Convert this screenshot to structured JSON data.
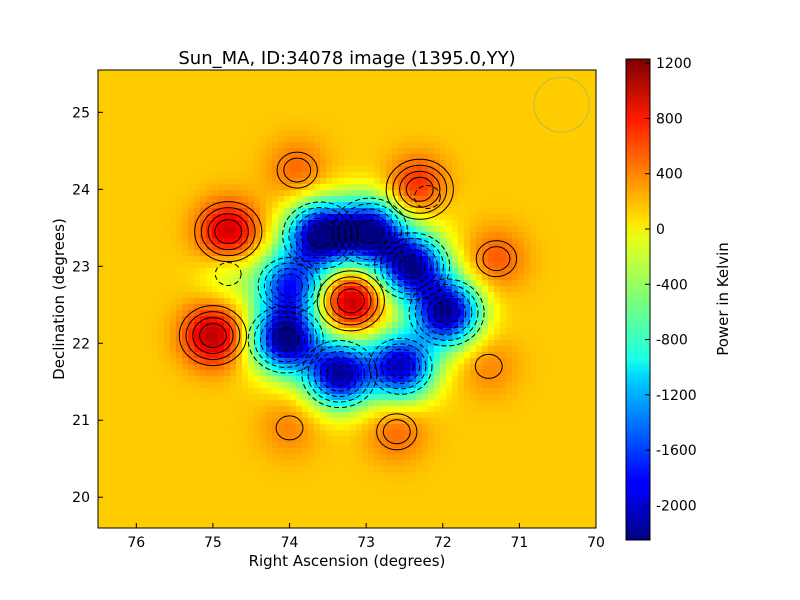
{
  "chart_data": {
    "type": "heatmap",
    "title": "Sun_MA, ID:34078 image (1395.0,YY)",
    "xlabel": "Right Ascension (degrees)",
    "ylabel": "Declination (degrees)",
    "colorbar_label": "Power in Kelvin",
    "xlim": [
      76.5,
      70.0
    ],
    "ylim": [
      19.6,
      25.55
    ],
    "x_ticks": [
      76,
      75,
      74,
      73,
      72,
      71,
      70
    ],
    "y_ticks": [
      20,
      21,
      22,
      23,
      24,
      25
    ],
    "colorbar_range": [
      -2250,
      1230
    ],
    "colorbar_ticks": [
      1200,
      800,
      400,
      0,
      -400,
      -800,
      -1200,
      -1600,
      -2000
    ],
    "colormap": "jet",
    "background_level": 100,
    "contours": "solid lines for positive levels, dashed lines for negative levels",
    "image_center": {
      "ra": 73.2,
      "dec": 22.55
    },
    "features": [
      {
        "label": "central peak",
        "ra": 73.2,
        "dec": 22.55,
        "value": 1100
      },
      {
        "label": "lobe",
        "ra": 72.3,
        "dec": 24.0,
        "value": 1000
      },
      {
        "label": "lobe",
        "ra": 74.8,
        "dec": 23.45,
        "value": 1000
      },
      {
        "label": "lobe",
        "ra": 75.0,
        "dec": 22.1,
        "value": 1050
      },
      {
        "label": "lobe",
        "ra": 73.9,
        "dec": 24.25,
        "value": 450
      },
      {
        "label": "lobe",
        "ra": 71.3,
        "dec": 23.1,
        "value": 500
      },
      {
        "label": "lobe",
        "ra": 71.4,
        "dec": 21.7,
        "value": 350
      },
      {
        "label": "lobe",
        "ra": 74.0,
        "dec": 20.9,
        "value": 350
      },
      {
        "label": "lobe",
        "ra": 72.6,
        "dec": 20.85,
        "value": 450
      },
      {
        "label": "trough",
        "ra": 73.6,
        "dec": 23.4,
        "value": -2200
      },
      {
        "label": "trough",
        "ra": 72.95,
        "dec": 23.45,
        "value": -2100
      },
      {
        "label": "trough",
        "ra": 72.4,
        "dec": 23.0,
        "value": -2050
      },
      {
        "label": "trough",
        "ra": 71.95,
        "dec": 22.4,
        "value": -2150
      },
      {
        "label": "trough",
        "ra": 72.55,
        "dec": 21.7,
        "value": -2000
      },
      {
        "label": "trough",
        "ra": 73.35,
        "dec": 21.6,
        "value": -2100
      },
      {
        "label": "trough",
        "ra": 74.05,
        "dec": 22.05,
        "value": -2200
      },
      {
        "label": "trough",
        "ra": 74.0,
        "dec": 22.75,
        "value": -1600
      },
      {
        "label": "depression",
        "ra": 74.8,
        "dec": 22.9,
        "value": -250
      },
      {
        "label": "depression",
        "ra": 72.2,
        "dec": 23.9,
        "value": -300
      }
    ],
    "beam": {
      "ra": 70.45,
      "dec": 25.1,
      "radius_deg": 0.36
    }
  }
}
